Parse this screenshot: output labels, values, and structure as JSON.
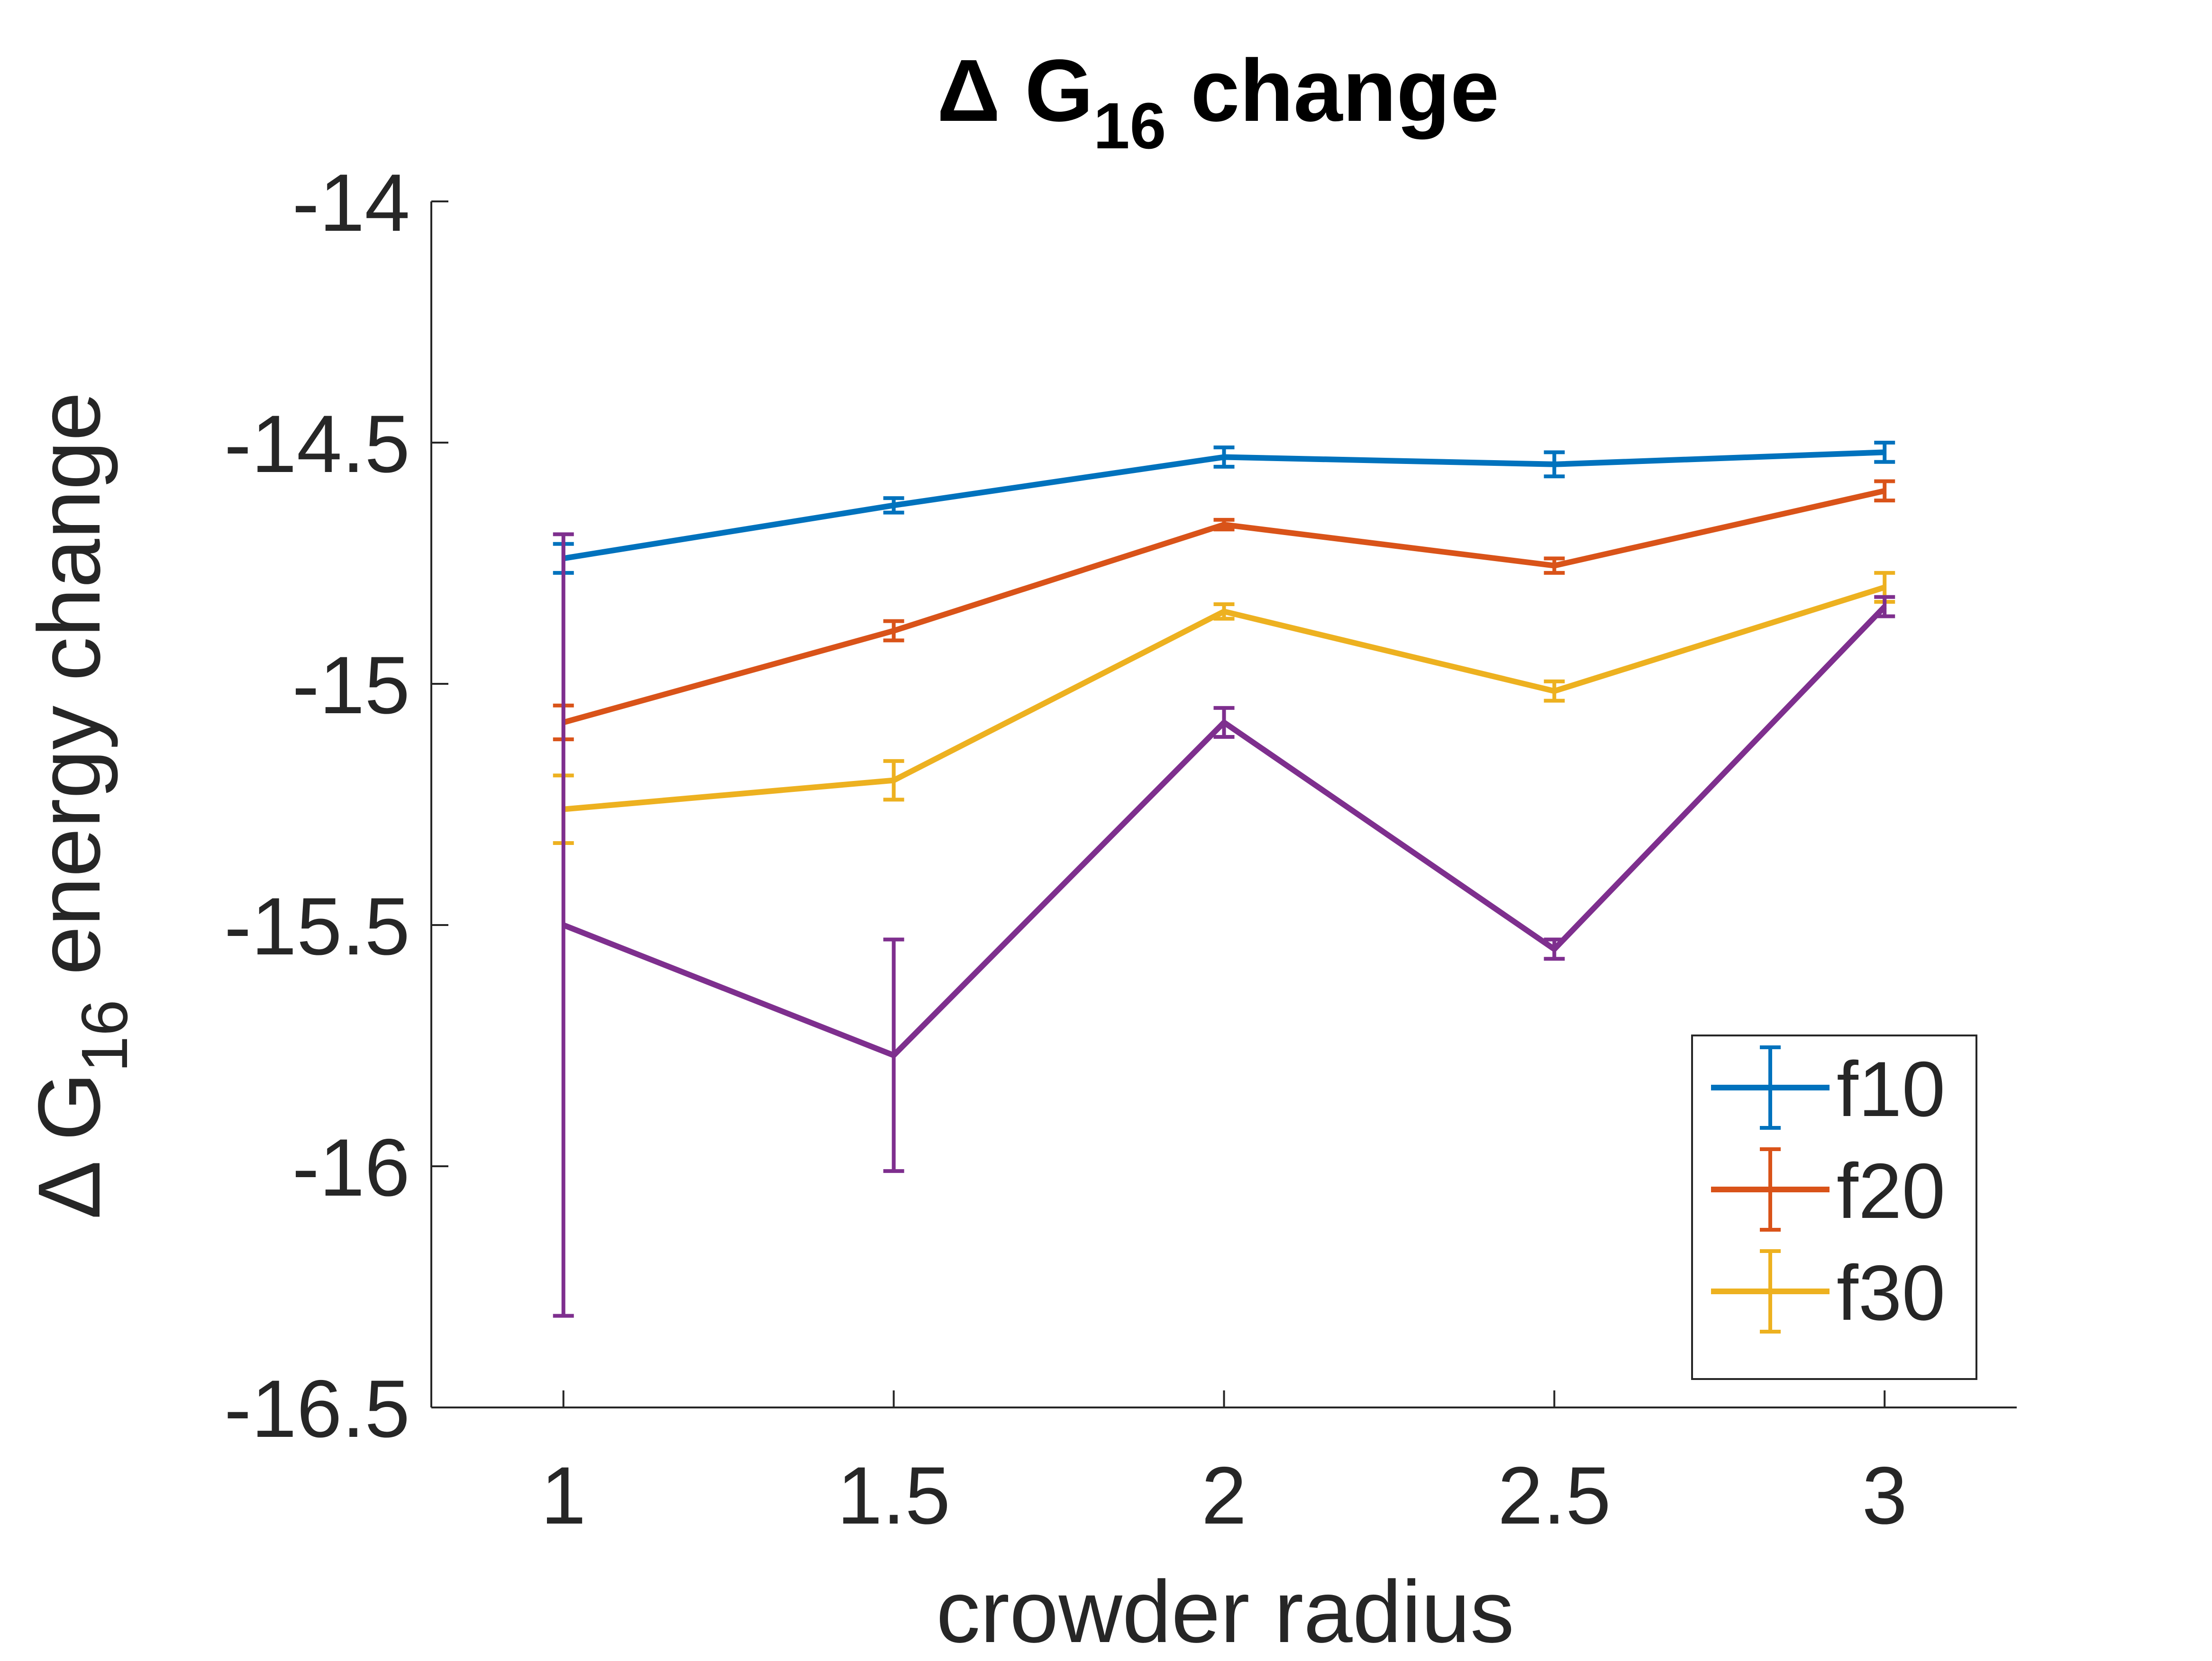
{
  "chart_data": {
    "type": "line",
    "title": {
      "prefix": "Δ G",
      "subscript": "16",
      "suffix": " change"
    },
    "xlabel": "crowder radius",
    "ylabel": {
      "prefix": "Δ G",
      "subscript": "16",
      "suffix": " energy change"
    },
    "x": [
      1,
      1.5,
      2,
      2.5,
      3
    ],
    "x_tick_labels": [
      "1",
      "1.5",
      "2",
      "2.5",
      "3"
    ],
    "xlim": [
      0.8,
      3.2
    ],
    "ylim": [
      -16.5,
      -14
    ],
    "y_ticks": [
      -14,
      -14.5,
      -15,
      -15.5,
      -16,
      -16.5
    ],
    "y_tick_labels": [
      "-14",
      "-14.5",
      "-15",
      "-15.5",
      "-16",
      "-16.5"
    ],
    "grid": false,
    "legend_position": "bottom-right",
    "series": [
      {
        "name": "f10",
        "color": "#0072BD",
        "values": [
          -14.74,
          -14.63,
          -14.53,
          -14.545,
          -14.52
        ],
        "errors": [
          0.03,
          0.015,
          0.02,
          0.025,
          0.02
        ]
      },
      {
        "name": "f20",
        "color": "#D95319",
        "values": [
          -15.08,
          -14.89,
          -14.67,
          -14.755,
          -14.6
        ],
        "errors": [
          0.035,
          0.02,
          0.01,
          0.015,
          0.02
        ]
      },
      {
        "name": "f30",
        "color": "#EDB120",
        "values": [
          -15.26,
          -15.2,
          -14.85,
          -15.015,
          -14.8
        ],
        "errors": [
          0.07,
          0.04,
          0.015,
          0.02,
          0.03
        ]
      },
      {
        "name": "",
        "color": "#7E2F8E",
        "values": [
          -15.5,
          -15.77,
          -15.08,
          -15.55,
          -14.84
        ],
        "errors": [
          0.81,
          0.24,
          0.03,
          0.02,
          0.02
        ]
      }
    ]
  }
}
